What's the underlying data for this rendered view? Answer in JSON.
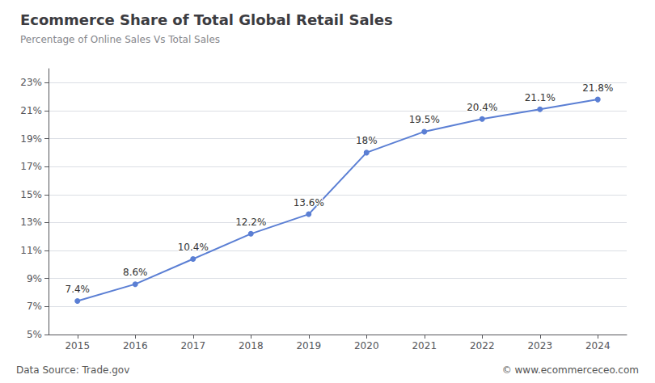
{
  "chart_data": {
    "type": "line",
    "title": "Ecommerce Share of Total Global Retail Sales",
    "subtitle": "Percentage of Online Sales Vs Total Sales",
    "x": [
      2015,
      2016,
      2017,
      2018,
      2019,
      2020,
      2021,
      2022,
      2023,
      2024
    ],
    "values": [
      7.4,
      8.6,
      10.4,
      12.2,
      13.6,
      18.0,
      19.5,
      20.4,
      21.1,
      21.8
    ],
    "value_labels": [
      "7.4%",
      "8.6%",
      "10.4%",
      "12.2%",
      "13.6%",
      "18%",
      "19.5%",
      "20.4%",
      "21.1%",
      "21.8%"
    ],
    "data_labels": true,
    "color": "#5b7fd4",
    "marker": "circle",
    "xlim": [
      2014.5,
      2024.5
    ],
    "xticks": [
      2015,
      2016,
      2017,
      2018,
      2019,
      2020,
      2021,
      2022,
      2023,
      2024
    ],
    "ylim": [
      5,
      24
    ],
    "yticks": [
      {
        "value": 5,
        "label": "5%"
      },
      {
        "value": 7,
        "label": "7%"
      },
      {
        "value": 9,
        "label": "9%"
      },
      {
        "value": 11,
        "label": "11%"
      },
      {
        "value": 13,
        "label": "13%"
      },
      {
        "value": 15,
        "label": "15%"
      },
      {
        "value": 17,
        "label": "17%"
      },
      {
        "value": 19,
        "label": "19%"
      },
      {
        "value": 21,
        "label": "21%"
      },
      {
        "value": 23,
        "label": "23%"
      }
    ],
    "grid": "y",
    "annotations": [
      "Data Source: Trade.gov",
      "© www.ecommerceceo.com"
    ]
  }
}
